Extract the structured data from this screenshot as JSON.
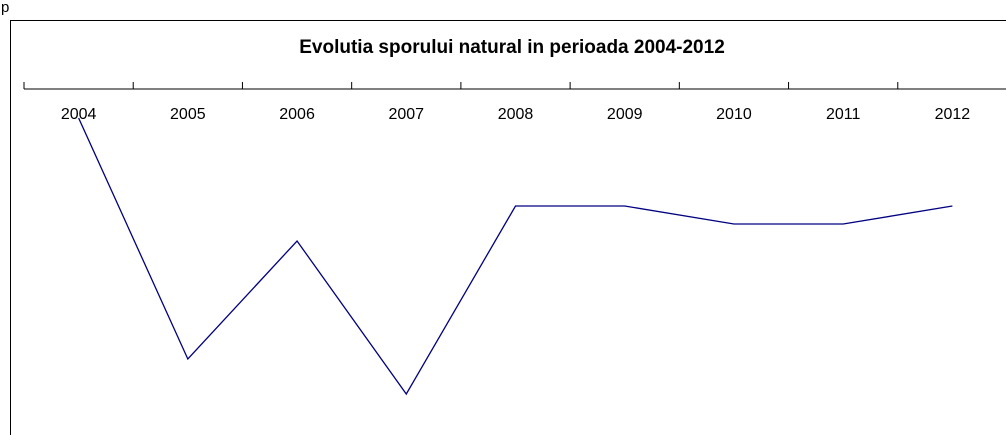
{
  "header": "p",
  "chart_data": {
    "type": "line",
    "title": "Evolutia sporului natural in perioada 2004-2012",
    "categories": [
      "2004",
      "2005",
      "2006",
      "2007",
      "2008",
      "2009",
      "2010",
      "2011",
      "2012"
    ],
    "series": [
      {
        "color": "#000080",
        "values": [
          -29,
          -270,
          -152,
          -305,
          -117,
          -117,
          -135,
          -135,
          -117
        ]
      }
    ],
    "ylim": [
      -341,
      0
    ]
  }
}
